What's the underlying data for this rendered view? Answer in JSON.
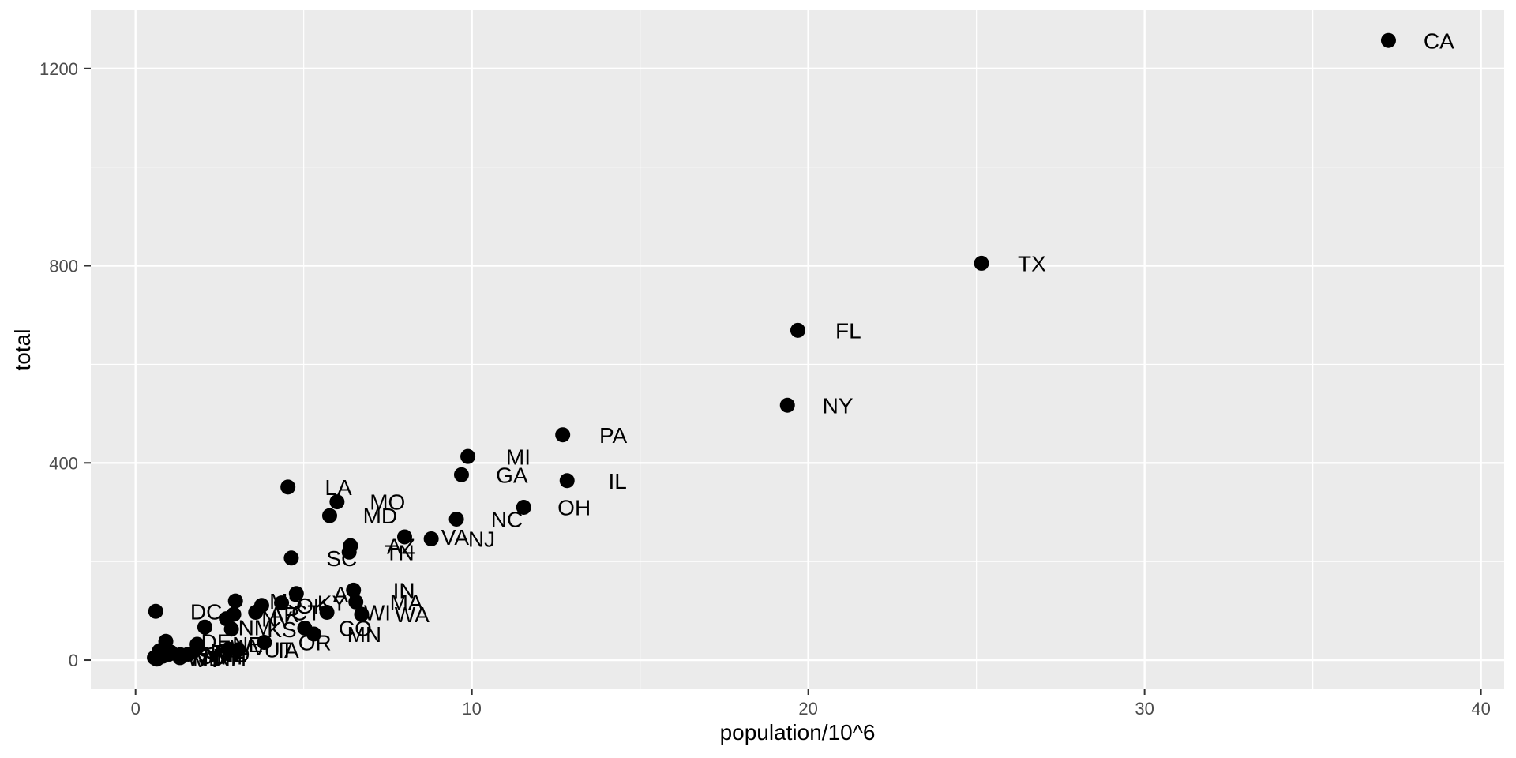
{
  "chart_data": {
    "type": "scatter",
    "title": "",
    "xlabel": "population/10^6",
    "ylabel": "total",
    "xlim": [
      -1.331,
      40.69
    ],
    "ylim": [
      -57.6,
      1318.2
    ],
    "x_major_ticks": [
      0,
      10,
      20,
      30,
      40
    ],
    "x_minor_ticks": [
      5,
      15,
      25,
      35
    ],
    "y_major_ticks": [
      0,
      400,
      800,
      1200
    ],
    "y_minor_ticks": [
      200,
      600,
      1000
    ],
    "x_tick_labels": [
      "0",
      "10",
      "20",
      "30",
      "40"
    ],
    "y_tick_labels": [
      "0",
      "400",
      "800",
      "1200"
    ],
    "grid": true,
    "legend": "none",
    "label_nudge_x": 1.5,
    "point_radius_px": 9.5,
    "points": [
      {
        "label": "AL",
        "x": 4.78,
        "y": 135
      },
      {
        "label": "AK",
        "x": 0.71,
        "y": 19
      },
      {
        "label": "AZ",
        "x": 6.39,
        "y": 232
      },
      {
        "label": "AR",
        "x": 2.92,
        "y": 93
      },
      {
        "label": "CA",
        "x": 37.25,
        "y": 1257
      },
      {
        "label": "CO",
        "x": 5.03,
        "y": 65
      },
      {
        "label": "CT",
        "x": 3.57,
        "y": 97
      },
      {
        "label": "DE",
        "x": 0.9,
        "y": 38
      },
      {
        "label": "DC",
        "x": 0.6,
        "y": 99
      },
      {
        "label": "FL",
        "x": 19.69,
        "y": 669
      },
      {
        "label": "GA",
        "x": 9.69,
        "y": 376
      },
      {
        "label": "HI",
        "x": 1.36,
        "y": 7
      },
      {
        "label": "ID",
        "x": 1.57,
        "y": 12
      },
      {
        "label": "IL",
        "x": 12.83,
        "y": 364
      },
      {
        "label": "IN",
        "x": 6.48,
        "y": 142
      },
      {
        "label": "IA",
        "x": 3.05,
        "y": 21
      },
      {
        "label": "KS",
        "x": 2.85,
        "y": 63
      },
      {
        "label": "KY",
        "x": 4.34,
        "y": 116
      },
      {
        "label": "LA",
        "x": 4.53,
        "y": 351
      },
      {
        "label": "ME",
        "x": 1.33,
        "y": 11
      },
      {
        "label": "MD",
        "x": 5.77,
        "y": 293
      },
      {
        "label": "MA",
        "x": 6.55,
        "y": 118
      },
      {
        "label": "MI",
        "x": 9.88,
        "y": 413
      },
      {
        "label": "MN",
        "x": 5.3,
        "y": 53
      },
      {
        "label": "MS",
        "x": 2.97,
        "y": 120
      },
      {
        "label": "MO",
        "x": 5.99,
        "y": 321
      },
      {
        "label": "MT",
        "x": 0.99,
        "y": 12
      },
      {
        "label": "NE",
        "x": 1.83,
        "y": 32
      },
      {
        "label": "NV",
        "x": 2.7,
        "y": 84
      },
      {
        "label": "NH",
        "x": 1.32,
        "y": 5
      },
      {
        "label": "NJ",
        "x": 8.79,
        "y": 246
      },
      {
        "label": "NM",
        "x": 2.06,
        "y": 67
      },
      {
        "label": "NY",
        "x": 19.38,
        "y": 517
      },
      {
        "label": "NC",
        "x": 9.54,
        "y": 286
      },
      {
        "label": "ND",
        "x": 0.67,
        "y": 4
      },
      {
        "label": "OH",
        "x": 11.54,
        "y": 310
      },
      {
        "label": "OK",
        "x": 3.75,
        "y": 111
      },
      {
        "label": "OR",
        "x": 3.83,
        "y": 36
      },
      {
        "label": "PA",
        "x": 12.7,
        "y": 457
      },
      {
        "label": "RI",
        "x": 1.05,
        "y": 16
      },
      {
        "label": "SC",
        "x": 4.63,
        "y": 207
      },
      {
        "label": "SD",
        "x": 0.81,
        "y": 8
      },
      {
        "label": "TN",
        "x": 6.35,
        "y": 219
      },
      {
        "label": "TX",
        "x": 25.15,
        "y": 805
      },
      {
        "label": "UT",
        "x": 2.76,
        "y": 22
      },
      {
        "label": "VT",
        "x": 0.63,
        "y": 2
      },
      {
        "label": "VA",
        "x": 8.0,
        "y": 250
      },
      {
        "label": "WA",
        "x": 6.72,
        "y": 93
      },
      {
        "label": "WV",
        "x": 1.85,
        "y": 27
      },
      {
        "label": "WI",
        "x": 5.69,
        "y": 97
      },
      {
        "label": "WY",
        "x": 0.56,
        "y": 5
      }
    ],
    "colors": {
      "panel_bg": "#EBEBEB",
      "grid": "#FFFFFF",
      "point": "#000000",
      "point_label": "#000000",
      "tick_text": "#4D4D4D",
      "tick_mark": "#333333",
      "axis_title": "#000000",
      "outer_bg": "#FFFFFF"
    }
  }
}
